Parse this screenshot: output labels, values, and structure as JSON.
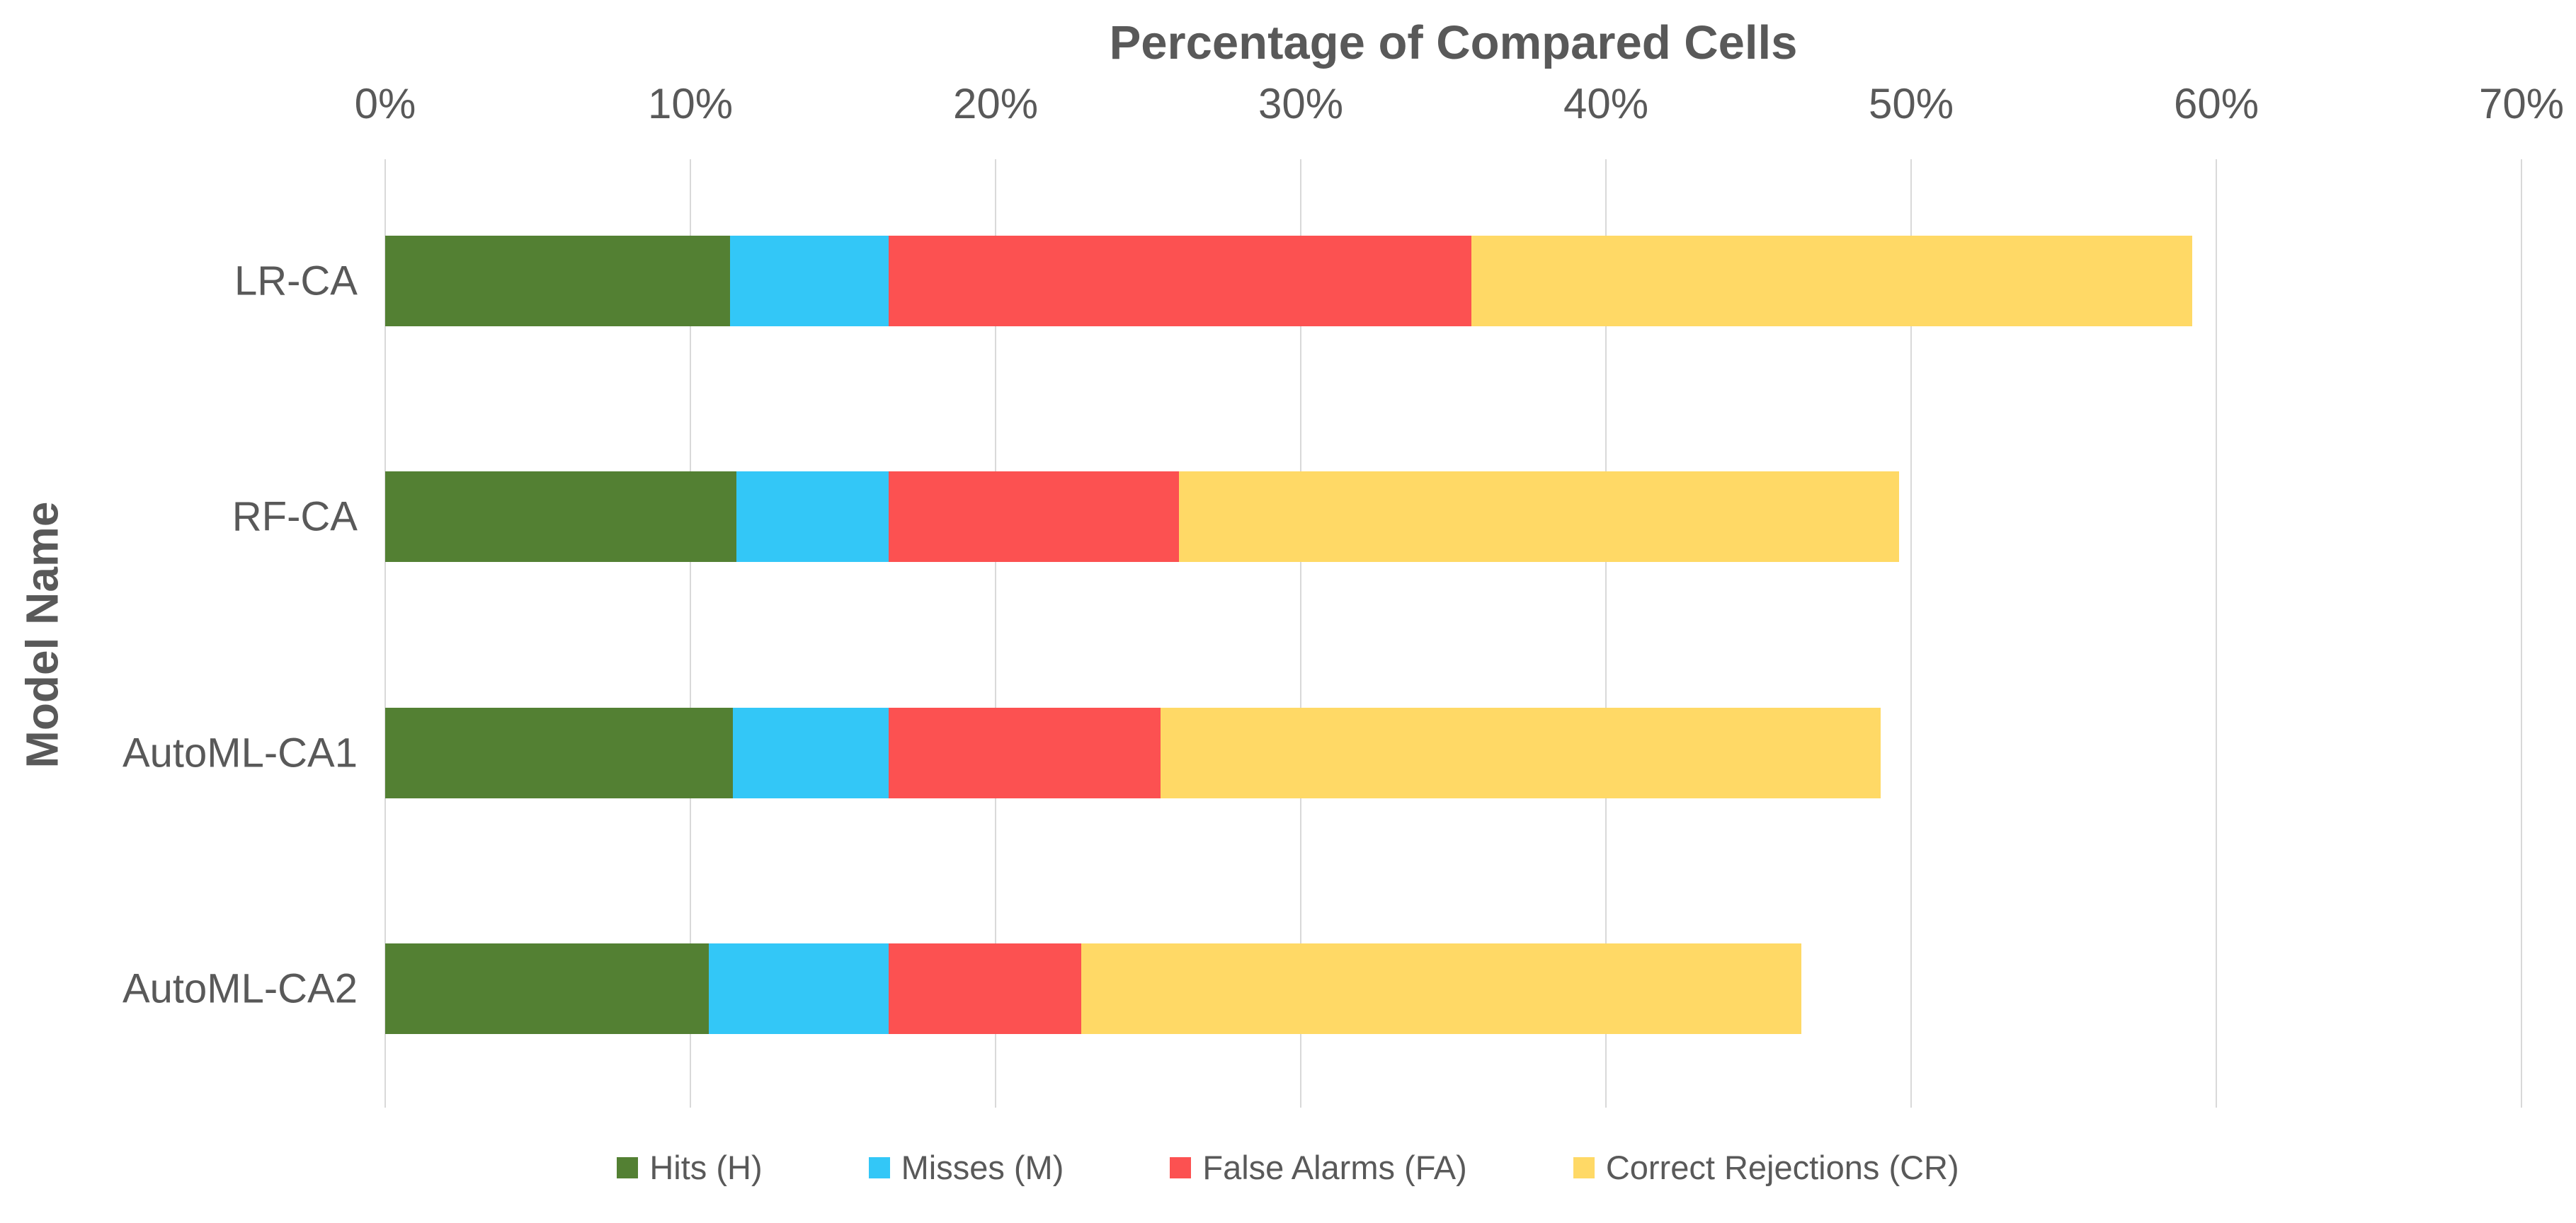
{
  "chart_data": {
    "type": "bar",
    "orientation": "horizontal",
    "stacked": true,
    "title": "Percentage of Compared Cells",
    "ylabel": "Model Name",
    "categories": [
      "LR-CA",
      "RF-CA",
      "AutoML-CA1",
      "AutoML-CA2"
    ],
    "series": [
      {
        "name": "Hits (H)",
        "color": "#538033",
        "values": [
          11.3,
          11.5,
          11.4,
          10.6
        ]
      },
      {
        "name": "Misses (M)",
        "color": "#33C7F7",
        "values": [
          5.2,
          5.0,
          5.1,
          5.9
        ]
      },
      {
        "name": "False Alarms (FA)",
        "color": "#FC5151",
        "values": [
          19.1,
          9.5,
          8.9,
          6.3
        ]
      },
      {
        "name": "Correct Rejections (CR)",
        "color": "#FFD966",
        "values": [
          23.6,
          23.6,
          23.6,
          23.6
        ]
      }
    ],
    "x_axis": {
      "min": 0,
      "max": 70,
      "tick_step": 10,
      "tick_labels": [
        "0%",
        "10%",
        "20%",
        "30%",
        "40%",
        "50%",
        "60%",
        "70%"
      ],
      "grid": true
    },
    "legend_position": "bottom"
  },
  "style": {
    "text_color": "#595959",
    "grid_color": "#D9D9D9",
    "background": "#FFFFFF"
  }
}
